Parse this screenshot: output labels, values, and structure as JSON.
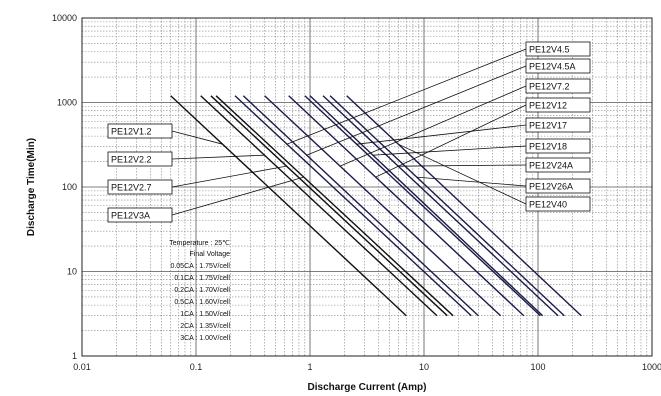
{
  "chart_data": {
    "type": "line",
    "x_scale": "log",
    "y_scale": "log",
    "xlim": [
      0.01,
      1000
    ],
    "ylim": [
      1,
      10000
    ],
    "xlabel": "Discharge Current (Amp)",
    "ylabel": "Discharge Time(Min)",
    "x_ticks": [
      "0.01",
      "0.1",
      "1",
      "10",
      "100",
      "1000"
    ],
    "y_ticks": [
      "1",
      "10",
      "100",
      "1000",
      "10000"
    ],
    "grid": true,
    "series": [
      {
        "name": "PE12V1.2",
        "x": [
          0.06,
          7
        ],
        "y": [
          1200,
          3
        ]
      },
      {
        "name": "PE12V2.2",
        "x": [
          0.11,
          13
        ],
        "y": [
          1200,
          3
        ]
      },
      {
        "name": "PE12V2.7",
        "x": [
          0.135,
          16
        ],
        "y": [
          1200,
          3
        ]
      },
      {
        "name": "PE12V3A",
        "x": [
          0.15,
          18
        ],
        "y": [
          1200,
          3
        ]
      },
      {
        "name": "PE12V4.5",
        "x": [
          0.22,
          26
        ],
        "y": [
          1200,
          3
        ]
      },
      {
        "name": "PE12V4.5A",
        "x": [
          0.26,
          30
        ],
        "y": [
          1200,
          3
        ]
      },
      {
        "name": "PE12V7.2",
        "x": [
          0.4,
          47
        ],
        "y": [
          1200,
          3
        ]
      },
      {
        "name": "PE12V12",
        "x": [
          0.65,
          75
        ],
        "y": [
          1200,
          3
        ]
      },
      {
        "name": "PE12V17",
        "x": [
          0.9,
          105
        ],
        "y": [
          1200,
          3
        ]
      },
      {
        "name": "PE12V18",
        "x": [
          1.0,
          110
        ],
        "y": [
          1200,
          3
        ]
      },
      {
        "name": "PE12V24A",
        "x": [
          1.3,
          150
        ],
        "y": [
          1200,
          3
        ]
      },
      {
        "name": "PE12V26A",
        "x": [
          1.5,
          170
        ],
        "y": [
          1200,
          3
        ]
      },
      {
        "name": "PE12V40",
        "x": [
          2.1,
          240
        ],
        "y": [
          1200,
          3
        ]
      }
    ],
    "annotation": {
      "temperature": "Temperature : 25℃",
      "final_voltage_title": "Final Voltage",
      "rows": [
        "0.05CA : 1.75V/cell",
        "0.1CA : 1.75V/cell",
        "0.2CA : 1.70V/cell",
        "0.5CA : 1.60V/cell",
        "1CA : 1.50V/cell",
        "2CA : 1.35V/cell",
        "3CA : 1.00V/cell"
      ]
    }
  }
}
